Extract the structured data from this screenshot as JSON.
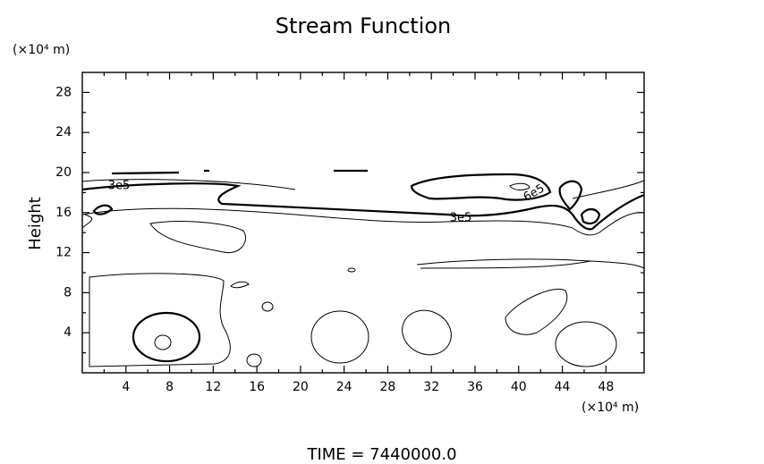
{
  "chart_data": {
    "type": "contour",
    "title": "Stream Function",
    "y_label": "Height",
    "y_unit": "(×10⁴ m)",
    "x_unit": "(×10⁴ m)",
    "footer": "TIME = 7440000.0",
    "xlim": [
      0,
      51.5
    ],
    "xticks": [
      4,
      8,
      12,
      16,
      20,
      24,
      28,
      32,
      36,
      40,
      44,
      48
    ],
    "ylim": [
      0,
      30
    ],
    "yticks": [
      4,
      8,
      12,
      16,
      20,
      24,
      28
    ],
    "contour_labels": [
      "3e5",
      "3e5",
      "6e5"
    ]
  }
}
